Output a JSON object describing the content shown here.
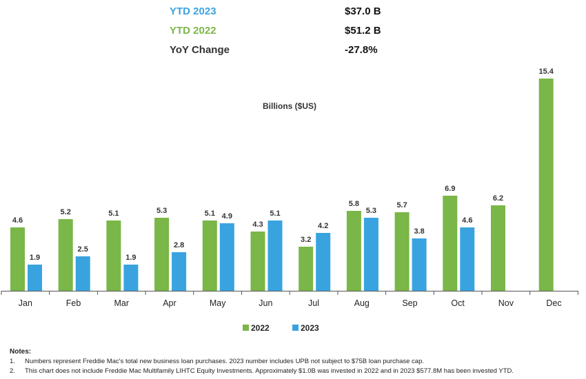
{
  "summary": {
    "rows": [
      {
        "label": "YTD 2023",
        "value": "$37.0 B",
        "color": "#39a3e0"
      },
      {
        "label": "YTD 2022",
        "value": "$51.2 B",
        "color": "#7ab648"
      },
      {
        "label": "YoY Change",
        "value": "-27.8%",
        "color": "#333333"
      }
    ]
  },
  "chart_data": {
    "type": "bar",
    "ylabel": "Billions ($US)",
    "categories": [
      "Jan",
      "Feb",
      "Mar",
      "Apr",
      "May",
      "Jun",
      "Jul",
      "Aug",
      "Sep",
      "Oct",
      "Nov",
      "Dec"
    ],
    "series": [
      {
        "name": "2022",
        "color": "#7ab648",
        "values": [
          4.6,
          5.2,
          5.1,
          5.3,
          5.1,
          4.3,
          3.2,
          5.8,
          5.7,
          6.9,
          6.2,
          15.4
        ]
      },
      {
        "name": "2023",
        "color": "#39a3e0",
        "values": [
          1.9,
          2.5,
          1.9,
          2.8,
          4.9,
          5.1,
          4.2,
          5.3,
          3.8,
          4.6,
          null,
          null
        ]
      }
    ],
    "data_labels": true,
    "grid": false,
    "legend": "bottom-center"
  },
  "notes": {
    "title": "Notes:",
    "items": [
      {
        "num": "1.",
        "text": "Numbers represent Freddie Mac's total new business loan purchases. 2023 number includes UPB not subject to $75B loan purchase cap."
      },
      {
        "num": "2.",
        "text": "This chart does not include Freddie Mac Multifamily LIHTC Equity Investments. Approximately $1.0B was invested in 2022 and in 2023 $577.8M has been invested YTD."
      }
    ]
  }
}
